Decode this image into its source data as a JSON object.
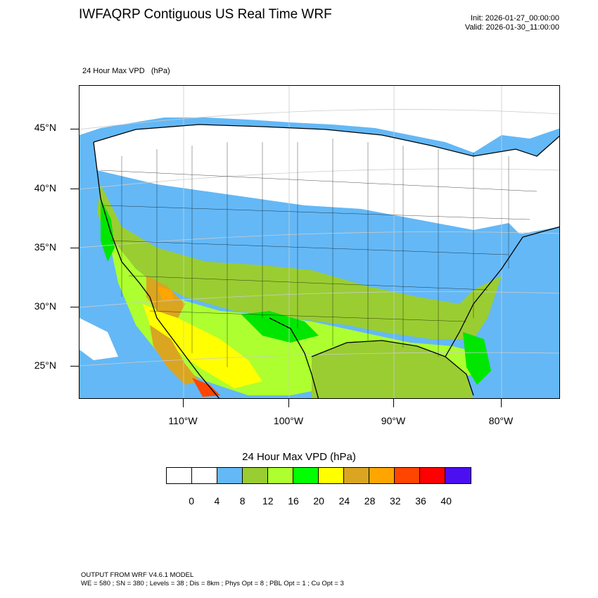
{
  "header": {
    "title": "IWFAQRP Contiguous US Real Time WRF",
    "init": "Init: 2026-01-27_00:00:00",
    "valid": "Valid: 2026-01-30_11:00:00"
  },
  "field": {
    "label": "24 Hour Max VPD   (hPa)"
  },
  "map": {
    "lat_labels": [
      "45°N",
      "40°N",
      "35°N",
      "30°N",
      "25°N"
    ],
    "lon_labels": [
      "110°W",
      "100°W",
      "90°W",
      "80°W"
    ],
    "region_colors": {
      "ocean": "#64b8f6",
      "gulf": "#9acd32",
      "low": "#ffffff",
      "band8": "#64b8f6",
      "band12": "#9acd32",
      "band16": "#adff2f",
      "band20": "#00e600",
      "band24": "#ffff00",
      "band28": "#daa520",
      "band32": "#ffa500",
      "band36": "#ff4500"
    }
  },
  "legend": {
    "title": "24 Hour Max VPD  (hPa)",
    "colors": [
      "#ffffff",
      "#ffffff",
      "#64b8f6",
      "#9acd32",
      "#adff2f",
      "#00ff00",
      "#ffff00",
      "#daa520",
      "#ffa500",
      "#ff4500",
      "#ff0000",
      "#4b0ff0"
    ],
    "labels": [
      "0",
      "4",
      "8",
      "12",
      "16",
      "20",
      "24",
      "28",
      "32",
      "36",
      "40"
    ]
  },
  "footer": {
    "line1": "OUTPUT FROM WRF V4.6.1 MODEL",
    "line2": "WE = 580 ; SN = 380 ; Levels = 38 ; Dis = 8km ; Phys Opt = 8 ; PBL Opt = 1 ; Cu Opt = 3"
  }
}
